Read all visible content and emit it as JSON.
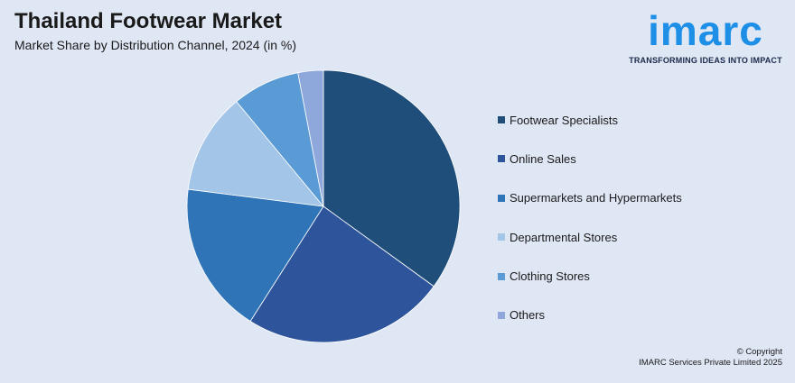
{
  "header": {
    "title": "Thailand Footwear Market",
    "subtitle": "Market Share by Distribution Channel, 2024 (in %)"
  },
  "logo": {
    "word": "imarc",
    "tagline": "TRANSFORMING IDEAS INTO IMPACT",
    "color": "#1e8fe6"
  },
  "footer": {
    "copyright_line1": "© Copyright",
    "copyright_line2": "IMARC Services Private Limited 2025"
  },
  "chart_data": {
    "type": "pie",
    "title": "Thailand Footwear Market",
    "subtitle": "Market Share by Distribution Channel, 2024 (in %)",
    "legend_position": "right",
    "slices": [
      {
        "name": "Footwear Specialists",
        "value": 35,
        "color": "#1f4e7a"
      },
      {
        "name": "Online Sales",
        "value": 24,
        "color": "#2e549b"
      },
      {
        "name": "Supermarkets and Hypermarkets",
        "value": 18,
        "color": "#2f74b7"
      },
      {
        "name": "Departmental Stores",
        "value": 12,
        "color": "#a3c5e8"
      },
      {
        "name": "Clothing Stores",
        "value": 8,
        "color": "#5b9bd5"
      },
      {
        "name": "Others",
        "value": 3,
        "color": "#8fa8dc"
      }
    ]
  }
}
